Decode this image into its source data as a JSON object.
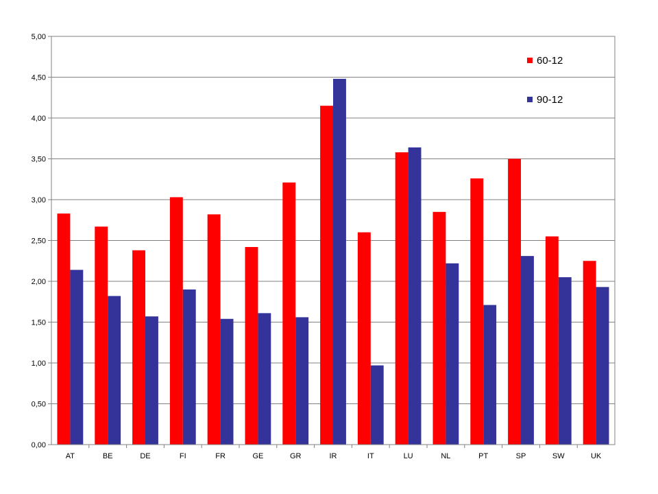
{
  "chart_data": {
    "type": "bar",
    "categories": [
      "AT",
      "BE",
      "DE",
      "FI",
      "FR",
      "GE",
      "GR",
      "IR",
      "IT",
      "LU",
      "NL",
      "PT",
      "SP",
      "SW",
      "UK"
    ],
    "series": [
      {
        "name": "60-12",
        "color": "#ff0000",
        "values": [
          2.83,
          2.67,
          2.38,
          3.03,
          2.82,
          2.42,
          3.21,
          4.15,
          2.6,
          3.58,
          2.85,
          3.26,
          3.5,
          2.55,
          2.25
        ]
      },
      {
        "name": "90-12",
        "color": "#333399",
        "values": [
          2.14,
          1.82,
          1.57,
          1.9,
          1.54,
          1.61,
          1.56,
          4.48,
          0.97,
          3.64,
          2.22,
          1.71,
          2.31,
          2.05,
          1.93
        ]
      }
    ],
    "y_ticks": [
      "0,00",
      "0,50",
      "1,00",
      "1,50",
      "2,00",
      "2,50",
      "3,00",
      "3,50",
      "4,00",
      "4,50",
      "5,00"
    ],
    "ylim": [
      0,
      5
    ],
    "grid": true,
    "legend_position": "top-right"
  }
}
